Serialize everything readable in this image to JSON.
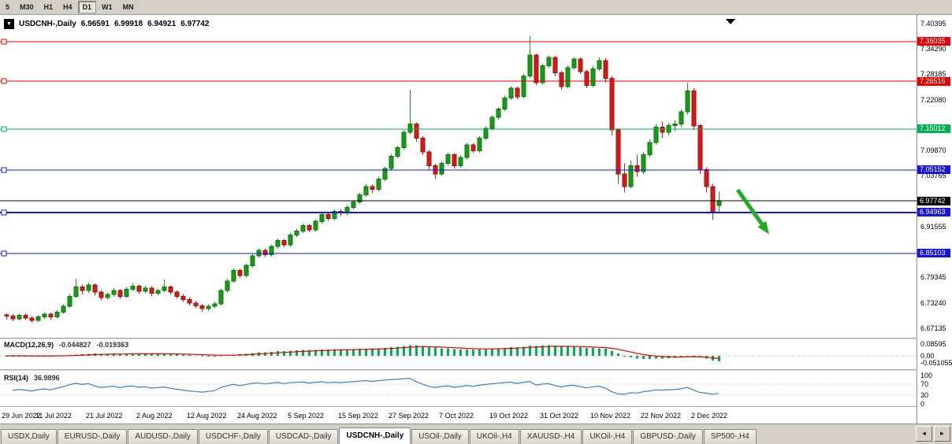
{
  "toolbar": {
    "timeframes": [
      "5",
      "M30",
      "H1",
      "H4",
      "D1",
      "W1",
      "MN"
    ],
    "active": "D1"
  },
  "icons": {
    "symbol_dropdown": "▼",
    "scroll_left": "◄",
    "scroll_right": "►"
  },
  "chart": {
    "title": {
      "symbol": "USDCNH-,Daily",
      "open": "6.96591",
      "high": "6.99918",
      "low": "6.94921",
      "close": "6.97742"
    }
  },
  "macd": {
    "label": "MACD(12,26,9)",
    "value_main": "-0.044827",
    "value_signal": "-0.019363"
  },
  "rsi": {
    "label": "RSI(14)",
    "value": "36.9896"
  },
  "tabs": {
    "items": [
      "USDX,Daily",
      "EURUSD-,Daily",
      "AUDUSD-,Daily",
      "USDCHF-,Daily",
      "USDCAD-,Daily",
      "USDCNH-,Daily",
      "USOil-,Daily",
      "UKOil-,H4",
      "XAUUSD-,H4",
      "UKOil-,H4",
      "GBPUSD-,Daily",
      "SP500-,H4"
    ],
    "active": "USDCNH-,Daily"
  },
  "chart_data": {
    "type": "candlestick",
    "symbol": "USDCNH-",
    "timeframe": "Daily",
    "ylim": [
      6.6482,
      7.4243
    ],
    "colors": {
      "bull": "#169c16",
      "bear": "#d61a1a",
      "bull_border": "#0b7a0b",
      "bear_border": "#9d0f0f"
    },
    "y_ticks": [
      {
        "price": 7.40395,
        "label": "7.40395"
      },
      {
        "price": 7.3429,
        "label": "7.34290"
      },
      {
        "price": 7.28185,
        "label": "7.28185"
      },
      {
        "price": 7.2208,
        "label": "7.22080"
      },
      {
        "price": 7.0987,
        "label": "7.09870"
      },
      {
        "price": 7.03765,
        "label": "7.03765"
      },
      {
        "price": 6.91555,
        "label": "6.91555"
      },
      {
        "price": 6.79345,
        "label": "6.79345"
      },
      {
        "price": 6.7324,
        "label": "6.73240"
      },
      {
        "price": 6.67135,
        "label": "6.67135"
      }
    ],
    "levels": [
      {
        "price": 7.36035,
        "label": "7.36035",
        "color": "#e60000",
        "width": 1
      },
      {
        "price": 7.26516,
        "label": "7.26516",
        "color": "#e60000",
        "width": 1
      },
      {
        "price": 7.15012,
        "label": "7.15012",
        "color": "#00b050",
        "width": 1
      },
      {
        "price": 7.05152,
        "label": "7.05152",
        "color": "#1515e0",
        "width": 1
      },
      {
        "price": 6.94963,
        "label": "6.94963",
        "color": "#1515e0",
        "width": 2
      },
      {
        "price": 6.85103,
        "label": "6.85103",
        "color": "#1515e0",
        "width": 1
      }
    ],
    "current_price": {
      "price": 6.97742,
      "label": "6.97742",
      "color": "#000000"
    },
    "x_labels": [
      {
        "label": "29 Jun 2022",
        "index": 0
      },
      {
        "label": "11 Jul 2022",
        "index": 8
      },
      {
        "label": "21 Jul 2022",
        "index": 16
      },
      {
        "label": "2 Aug 2022",
        "index": 24
      },
      {
        "label": "12 Aug 2022",
        "index": 32
      },
      {
        "label": "24 Aug 2022",
        "index": 40
      },
      {
        "label": "5 Sep 2022",
        "index": 48
      },
      {
        "label": "15 Sep 2022",
        "index": 56
      },
      {
        "label": "27 Sep 2022",
        "index": 64
      },
      {
        "label": "7 Oct 2022",
        "index": 72
      },
      {
        "label": "19 Oct 2022",
        "index": 80
      },
      {
        "label": "31 Oct 2022",
        "index": 88
      },
      {
        "label": "10 Nov 2022",
        "index": 96
      },
      {
        "label": "22 Nov 2022",
        "index": 104
      },
      {
        "label": "2 Dec 2022",
        "index": 112
      }
    ],
    "indicators": [
      {
        "name": "MACD",
        "params": "12,26,9",
        "scale_labels": [
          "0.08595",
          "0.00",
          "-0.051055"
        ],
        "histogram_color": "#00b050",
        "signal_color": "#e00000"
      },
      {
        "name": "RSI",
        "params": "14",
        "scale_labels": [
          "100",
          "70",
          "30",
          "0"
        ],
        "levels": [
          70,
          30
        ],
        "line_color": "#3e7fc1"
      }
    ],
    "annotations": [
      {
        "type": "trend-arrow",
        "color": "#1fae1f",
        "width": 5,
        "from": {
          "index": 116,
          "price": 7.004
        },
        "to": {
          "index": 121,
          "price": 6.897
        }
      }
    ],
    "ohlc": [
      [
        6.703,
        6.707,
        6.692,
        6.7
      ],
      [
        6.7,
        6.705,
        6.688,
        6.694
      ],
      [
        6.694,
        6.706,
        6.69,
        6.702
      ],
      [
        6.702,
        6.707,
        6.691,
        6.696
      ],
      [
        6.696,
        6.7,
        6.684,
        6.69
      ],
      [
        6.69,
        6.703,
        6.686,
        6.698
      ],
      [
        6.698,
        6.71,
        6.694,
        6.705
      ],
      [
        6.705,
        6.709,
        6.692,
        6.698
      ],
      [
        6.698,
        6.715,
        6.695,
        6.71
      ],
      [
        6.71,
        6.729,
        6.706,
        6.724
      ],
      [
        6.724,
        6.753,
        6.72,
        6.748
      ],
      [
        6.748,
        6.79,
        6.744,
        6.77
      ],
      [
        6.77,
        6.776,
        6.752,
        6.762
      ],
      [
        6.762,
        6.781,
        6.756,
        6.775
      ],
      [
        6.775,
        6.779,
        6.75,
        6.758
      ],
      [
        6.758,
        6.763,
        6.738,
        6.745
      ],
      [
        6.745,
        6.757,
        6.74,
        6.752
      ],
      [
        6.752,
        6.768,
        6.747,
        6.762
      ],
      [
        6.762,
        6.766,
        6.742,
        6.748
      ],
      [
        6.748,
        6.77,
        6.744,
        6.765
      ],
      [
        6.765,
        6.78,
        6.76,
        6.772
      ],
      [
        6.772,
        6.776,
        6.754,
        6.76
      ],
      [
        6.76,
        6.773,
        6.755,
        6.768
      ],
      [
        6.768,
        6.772,
        6.748,
        6.755
      ],
      [
        6.755,
        6.767,
        6.75,
        6.762
      ],
      [
        6.762,
        6.788,
        6.757,
        6.77
      ],
      [
        6.77,
        6.774,
        6.752,
        6.758
      ],
      [
        6.758,
        6.762,
        6.742,
        6.748
      ],
      [
        6.748,
        6.753,
        6.734,
        6.74
      ],
      [
        6.74,
        6.745,
        6.726,
        6.732
      ],
      [
        6.732,
        6.737,
        6.719,
        6.725
      ],
      [
        6.725,
        6.729,
        6.711,
        6.718
      ],
      [
        6.718,
        6.729,
        6.713,
        6.724
      ],
      [
        6.724,
        6.735,
        6.719,
        6.73
      ],
      [
        6.73,
        6.766,
        6.726,
        6.762
      ],
      [
        6.762,
        6.79,
        6.757,
        6.785
      ],
      [
        6.785,
        6.815,
        6.78,
        6.81
      ],
      [
        6.81,
        6.814,
        6.792,
        6.798
      ],
      [
        6.798,
        6.827,
        6.793,
        6.822
      ],
      [
        6.822,
        6.85,
        6.817,
        6.845
      ],
      [
        6.845,
        6.863,
        6.84,
        6.858
      ],
      [
        6.858,
        6.862,
        6.842,
        6.848
      ],
      [
        6.848,
        6.873,
        6.843,
        6.868
      ],
      [
        6.868,
        6.887,
        6.862,
        6.882
      ],
      [
        6.882,
        6.886,
        6.866,
        6.872
      ],
      [
        6.872,
        6.9,
        6.867,
        6.895
      ],
      [
        6.895,
        6.91,
        6.89,
        6.905
      ],
      [
        6.905,
        6.923,
        6.9,
        6.918
      ],
      [
        6.918,
        6.922,
        6.902,
        6.908
      ],
      [
        6.908,
        6.933,
        6.903,
        6.928
      ],
      [
        6.928,
        6.95,
        6.923,
        6.945
      ],
      [
        6.945,
        6.949,
        6.929,
        6.935
      ],
      [
        6.935,
        6.957,
        6.93,
        6.952
      ],
      [
        6.952,
        6.958,
        6.941,
        6.948
      ],
      [
        6.948,
        6.967,
        6.943,
        6.962
      ],
      [
        6.962,
        6.98,
        6.957,
        6.975
      ],
      [
        6.975,
        6.997,
        6.97,
        6.992
      ],
      [
        6.992,
        7.017,
        6.987,
        7.012
      ],
      [
        7.012,
        7.016,
        6.997,
        7.005
      ],
      [
        7.005,
        7.035,
        7.0,
        7.03
      ],
      [
        7.03,
        7.06,
        7.025,
        7.055
      ],
      [
        7.055,
        7.09,
        7.05,
        7.085
      ],
      [
        7.085,
        7.11,
        7.08,
        7.105
      ],
      [
        7.105,
        7.147,
        7.1,
        7.142
      ],
      [
        7.142,
        7.245,
        7.137,
        7.162
      ],
      [
        7.162,
        7.166,
        7.12,
        7.128
      ],
      [
        7.128,
        7.133,
        7.088,
        7.095
      ],
      [
        7.095,
        7.1,
        7.052,
        7.062
      ],
      [
        7.062,
        7.067,
        7.03,
        7.042
      ],
      [
        7.042,
        7.073,
        7.037,
        7.068
      ],
      [
        7.068,
        7.093,
        7.063,
        7.088
      ],
      [
        7.088,
        7.092,
        7.055,
        7.062
      ],
      [
        7.062,
        7.087,
        7.057,
        7.082
      ],
      [
        7.082,
        7.117,
        7.077,
        7.112
      ],
      [
        7.112,
        7.116,
        7.092,
        7.098
      ],
      [
        7.098,
        7.133,
        7.093,
        7.128
      ],
      [
        7.128,
        7.157,
        7.123,
        7.152
      ],
      [
        7.152,
        7.183,
        7.147,
        7.178
      ],
      [
        7.178,
        7.203,
        7.173,
        7.198
      ],
      [
        7.198,
        7.23,
        7.193,
        7.225
      ],
      [
        7.225,
        7.253,
        7.22,
        7.248
      ],
      [
        7.248,
        7.252,
        7.222,
        7.228
      ],
      [
        7.228,
        7.283,
        7.223,
        7.278
      ],
      [
        7.278,
        7.374,
        7.273,
        7.328
      ],
      [
        7.328,
        7.332,
        7.255,
        7.262
      ],
      [
        7.262,
        7.307,
        7.257,
        7.302
      ],
      [
        7.302,
        7.327,
        7.297,
        7.322
      ],
      [
        7.322,
        7.326,
        7.278,
        7.285
      ],
      [
        7.285,
        7.29,
        7.245,
        7.252
      ],
      [
        7.252,
        7.303,
        7.247,
        7.298
      ],
      [
        7.298,
        7.323,
        7.293,
        7.318
      ],
      [
        7.318,
        7.322,
        7.282,
        7.288
      ],
      [
        7.288,
        7.293,
        7.248,
        7.255
      ],
      [
        7.255,
        7.302,
        7.25,
        7.295
      ],
      [
        7.295,
        7.322,
        7.29,
        7.315
      ],
      [
        7.315,
        7.32,
        7.262,
        7.272
      ],
      [
        7.272,
        7.278,
        7.135,
        7.148
      ],
      [
        7.148,
        7.152,
        7.018,
        7.042
      ],
      [
        7.042,
        7.068,
        6.998,
        7.012
      ],
      [
        7.012,
        7.075,
        7.008,
        7.062
      ],
      [
        7.062,
        7.088,
        7.035,
        7.048
      ],
      [
        7.048,
        7.095,
        7.042,
        7.088
      ],
      [
        7.088,
        7.125,
        7.082,
        7.118
      ],
      [
        7.118,
        7.162,
        7.112,
        7.155
      ],
      [
        7.155,
        7.168,
        7.128,
        7.142
      ],
      [
        7.142,
        7.165,
        7.135,
        7.158
      ],
      [
        7.158,
        7.172,
        7.145,
        7.162
      ],
      [
        7.162,
        7.198,
        7.155,
        7.192
      ],
      [
        7.192,
        7.262,
        7.185,
        7.242
      ],
      [
        7.242,
        7.248,
        7.148,
        7.158
      ],
      [
        7.158,
        7.162,
        7.042,
        7.052
      ],
      [
        7.052,
        7.058,
        6.998,
        7.012
      ],
      [
        7.012,
        7.018,
        6.932,
        6.948
      ],
      [
        6.966,
        6.999,
        6.949,
        6.977
      ]
    ]
  }
}
